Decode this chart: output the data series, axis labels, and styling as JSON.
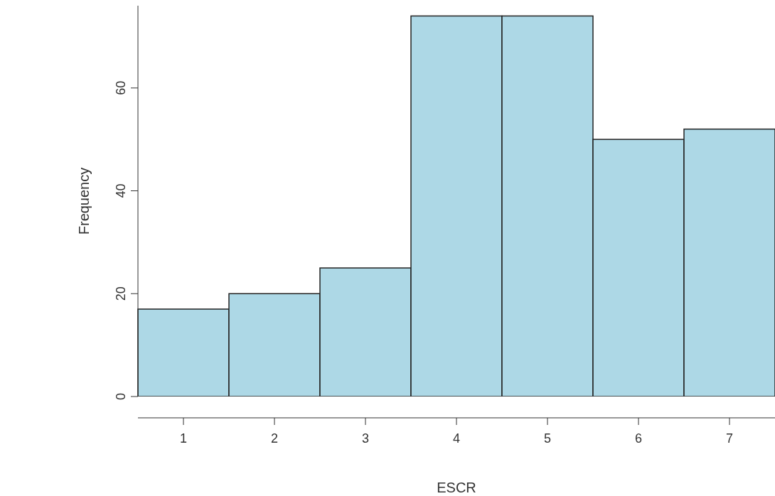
{
  "chart_data": {
    "type": "histogram",
    "xlabel": "ESCR",
    "ylabel": "Frequency",
    "bins": [
      0.5,
      1.5,
      2.5,
      3.5,
      4.5,
      5.5,
      6.5,
      7.5
    ],
    "values": [
      17,
      20,
      25,
      74,
      74,
      50,
      52
    ],
    "color": "#add8e6",
    "xlim": [
      0.5,
      7.5
    ],
    "xticks": [
      1,
      2,
      3,
      4,
      5,
      6,
      7
    ],
    "ylim": [
      0,
      76
    ],
    "yticks": [
      0,
      20,
      40,
      60
    ],
    "grid": false
  }
}
